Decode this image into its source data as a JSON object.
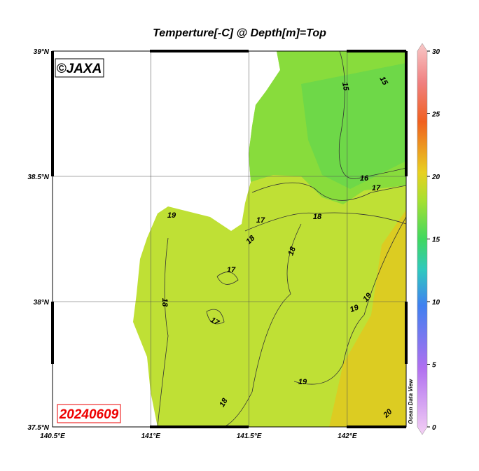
{
  "title": "Temperture[-C] @ Depth[m]=Top",
  "map": {
    "xlim": [
      140.5,
      142.3
    ],
    "ylim": [
      37.5,
      39
    ],
    "lon_ticks": [
      {
        "value": 140.5,
        "label": "140.5°E"
      },
      {
        "value": 141,
        "label": "141°E"
      },
      {
        "value": 141.5,
        "label": "141.5°E"
      },
      {
        "value": 142,
        "label": "142°E"
      }
    ],
    "lat_ticks": [
      {
        "value": 37.5,
        "label": "37.5°N"
      },
      {
        "value": 38,
        "label": "38°N"
      },
      {
        "value": 38.5,
        "label": "38.5°N"
      },
      {
        "value": 39,
        "label": "39°N"
      }
    ],
    "contour_labels": [
      "15",
      "15",
      "16",
      "17",
      "18",
      "17",
      "18",
      "19",
      "18",
      "17",
      "18",
      "17",
      "19",
      "19",
      "19",
      "18",
      "20"
    ]
  },
  "colorbar": {
    "lim": [
      0,
      30
    ],
    "ticks": [
      0,
      5,
      10,
      15,
      20,
      25,
      30
    ]
  },
  "watermark": "©JAXA",
  "date": "20240609",
  "credit": "Ocean Data View"
}
